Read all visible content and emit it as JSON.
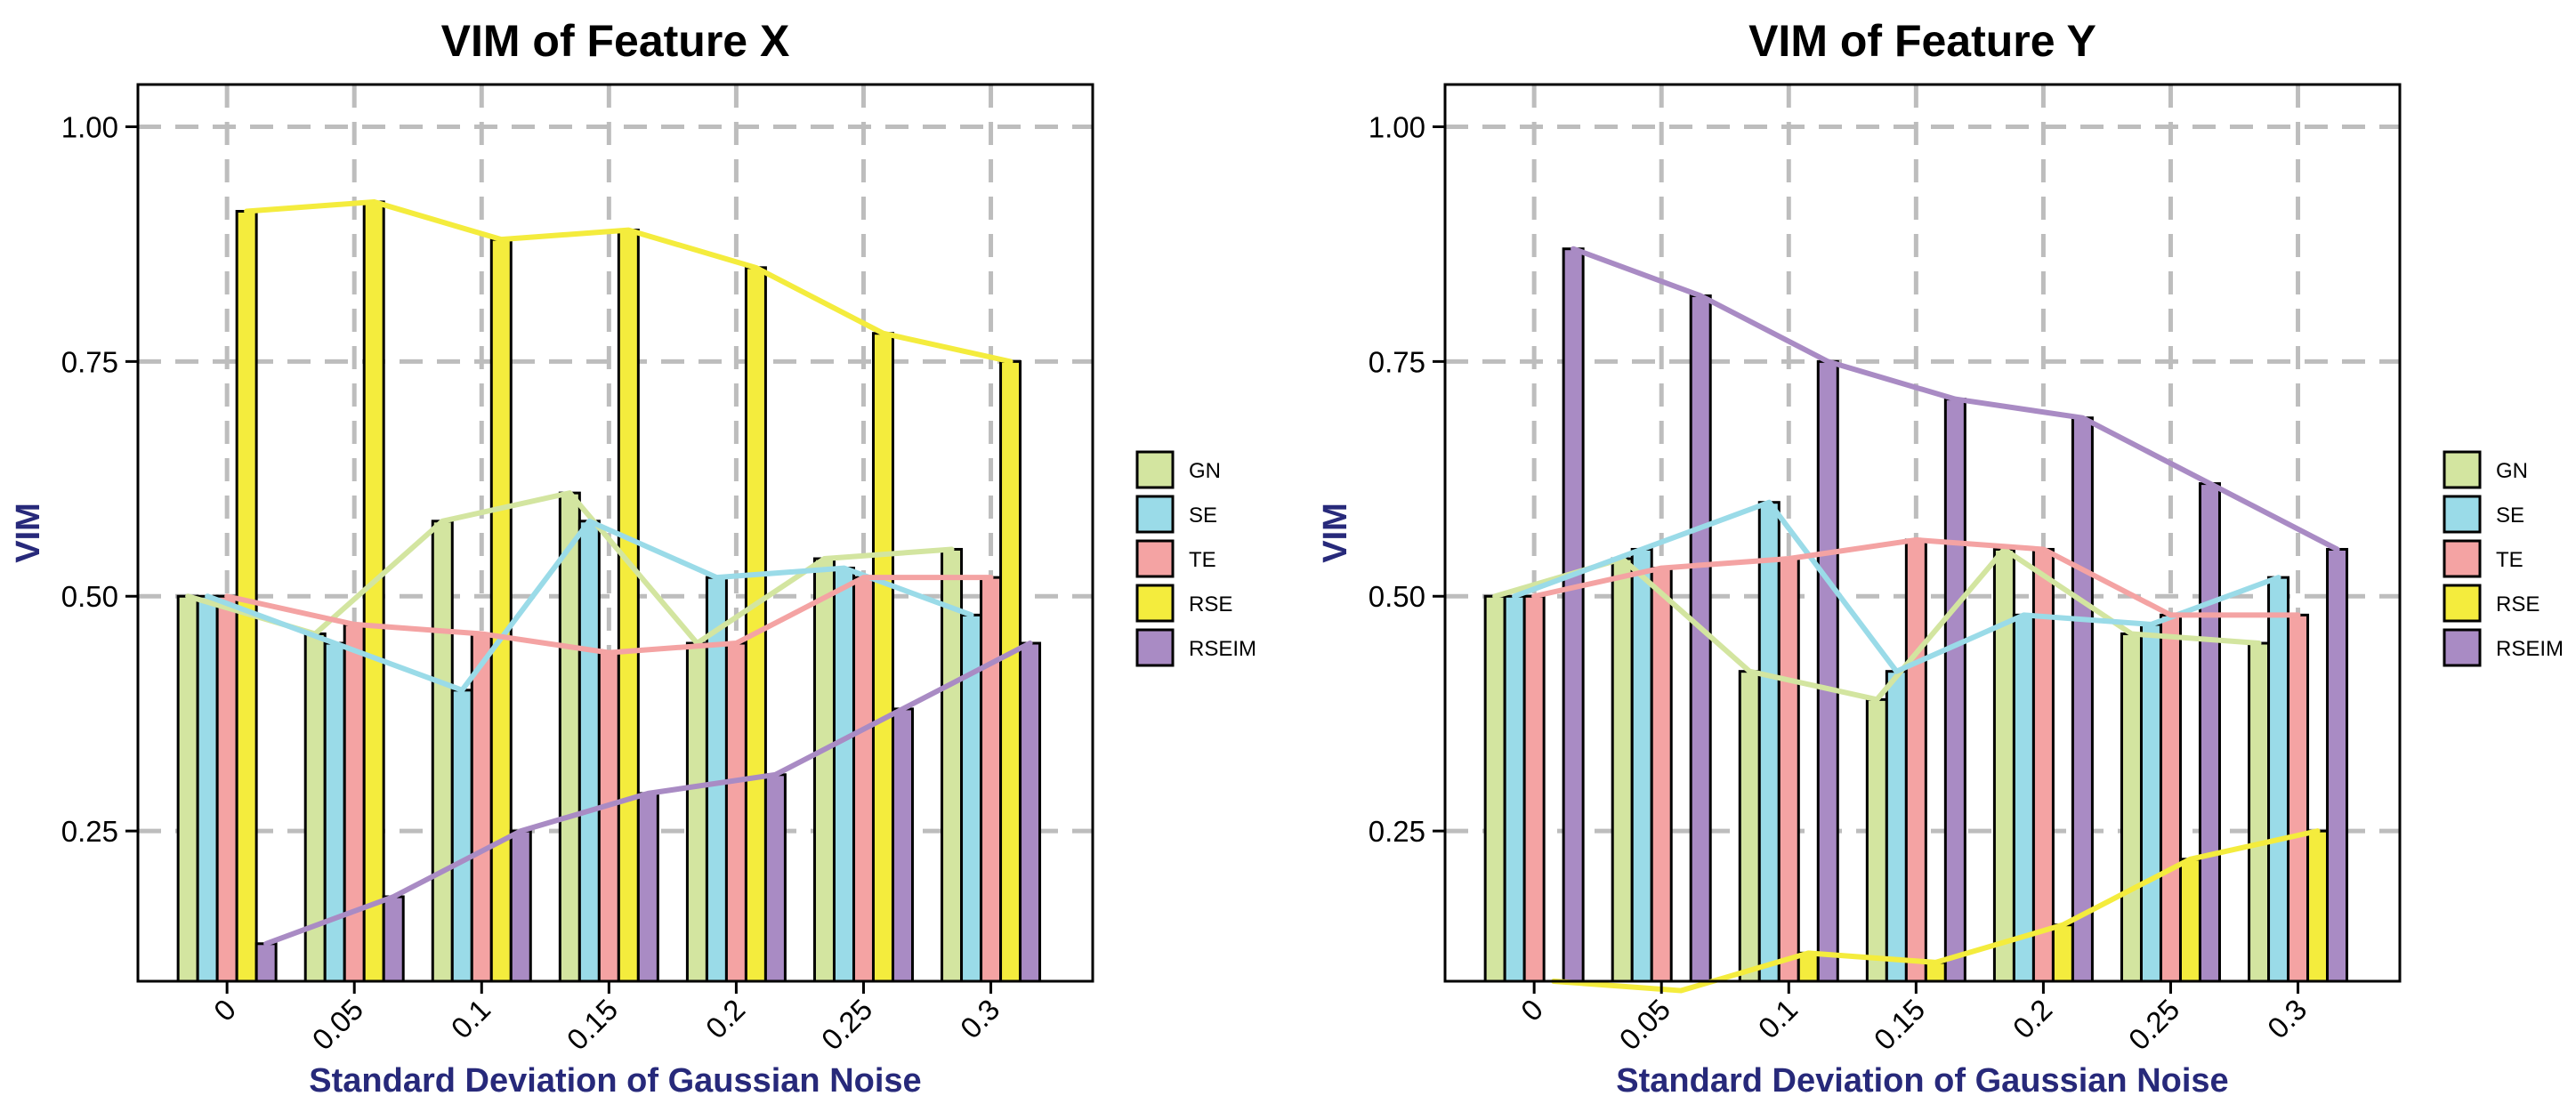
{
  "chart_data": [
    {
      "type": "bar",
      "title": "VIM of Feature X",
      "xlabel": "Standard Deviation of Gaussian Noise",
      "ylabel": "VIM",
      "categories": [
        "0",
        "0.05",
        "0.1",
        "0.15",
        "0.2",
        "0.25",
        "0.3"
      ],
      "ylim": [
        0.09,
        1.045
      ],
      "yticks": [
        "0.25",
        "0.50",
        "0.75",
        "1.00"
      ],
      "grid": true,
      "legend_position": "right",
      "series": [
        {
          "name": "GN",
          "color": "#d3e5a0",
          "values": [
            0.5,
            0.46,
            0.58,
            0.61,
            0.45,
            0.54,
            0.55
          ]
        },
        {
          "name": "SE",
          "color": "#9adbe8",
          "values": [
            0.5,
            0.45,
            0.4,
            0.58,
            0.52,
            0.53,
            0.48
          ]
        },
        {
          "name": "TE",
          "color": "#f4a3a3",
          "values": [
            0.5,
            0.47,
            0.46,
            0.44,
            0.45,
            0.52,
            0.52
          ]
        },
        {
          "name": "RSE",
          "color": "#f4ec3d",
          "values": [
            0.91,
            0.92,
            0.88,
            0.89,
            0.85,
            0.78,
            0.75
          ]
        },
        {
          "name": "RSEIM",
          "color": "#a98bc4",
          "values": [
            0.13,
            0.18,
            0.25,
            0.29,
            0.31,
            0.38,
            0.45
          ]
        }
      ]
    },
    {
      "type": "bar",
      "title": "VIM of Feature Y",
      "xlabel": "Standard Deviation of Gaussian Noise",
      "ylabel": "VIM",
      "categories": [
        "0",
        "0.05",
        "0.1",
        "0.15",
        "0.2",
        "0.25",
        "0.3"
      ],
      "ylim": [
        0.09,
        1.045
      ],
      "yticks": [
        "0.25",
        "0.50",
        "0.75",
        "1.00"
      ],
      "grid": true,
      "legend_position": "right",
      "series": [
        {
          "name": "GN",
          "color": "#d3e5a0",
          "values": [
            0.5,
            0.54,
            0.42,
            0.39,
            0.55,
            0.46,
            0.45
          ]
        },
        {
          "name": "SE",
          "color": "#9adbe8",
          "values": [
            0.5,
            0.55,
            0.6,
            0.42,
            0.48,
            0.47,
            0.52
          ]
        },
        {
          "name": "TE",
          "color": "#f4a3a3",
          "values": [
            0.5,
            0.53,
            0.54,
            0.56,
            0.55,
            0.48,
            0.48
          ]
        },
        {
          "name": "RSE",
          "color": "#f4ec3d",
          "values": [
            0.09,
            0.08,
            0.12,
            0.11,
            0.15,
            0.22,
            0.25
          ]
        },
        {
          "name": "RSEIM",
          "color": "#a98bc4",
          "values": [
            0.87,
            0.82,
            0.75,
            0.71,
            0.69,
            0.62,
            0.55
          ]
        }
      ]
    }
  ]
}
